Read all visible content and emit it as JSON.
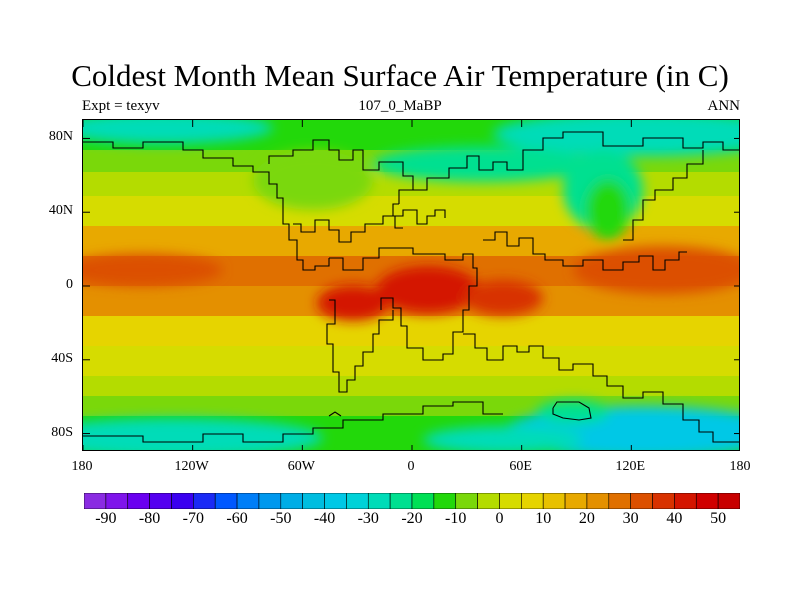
{
  "title": "Coldest Month Mean Surface Air Temperature (in C)",
  "subtitle_left": "Expt = texyv",
  "subtitle_center": "107_0_MaBP",
  "subtitle_right": "ANN",
  "map": {
    "lon_range": [
      -180,
      180
    ],
    "lat_range": [
      -90,
      90
    ],
    "lat_ticks": [
      {
        "value": 80,
        "label": "80N"
      },
      {
        "value": 40,
        "label": "40N"
      },
      {
        "value": 0,
        "label": "0"
      },
      {
        "value": -40,
        "label": "40S"
      },
      {
        "value": -80,
        "label": "80S"
      }
    ],
    "lon_ticks": [
      {
        "value": -180,
        "label": "180"
      },
      {
        "value": -120,
        "label": "120W"
      },
      {
        "value": -60,
        "label": "60W"
      },
      {
        "value": 0,
        "label": "0"
      },
      {
        "value": 60,
        "label": "60E"
      },
      {
        "value": 120,
        "label": "120E"
      },
      {
        "value": 180,
        "label": "180"
      }
    ]
  },
  "colorbar": {
    "min": -95,
    "max": 55,
    "step": 5,
    "colors": [
      "#8a2be2",
      "#7f14eb",
      "#6a00f0",
      "#5500f0",
      "#3a00f0",
      "#1a2af5",
      "#0058ff",
      "#007ef8",
      "#0098ee",
      "#00ade6",
      "#00bde0",
      "#00c8e6",
      "#00d2d8",
      "#00dcb8",
      "#00e090",
      "#00e055",
      "#22d80a",
      "#7ad80a",
      "#b4dc00",
      "#d6dc00",
      "#e6d400",
      "#e8c100",
      "#e8a900",
      "#e49000",
      "#e07000",
      "#dc5000",
      "#d83200",
      "#d41500",
      "#d00000",
      "#c80000"
    ],
    "labels": [
      {
        "value": -90,
        "label": "-90"
      },
      {
        "value": -80,
        "label": "-80"
      },
      {
        "value": -70,
        "label": "-70"
      },
      {
        "value": -60,
        "label": "-60"
      },
      {
        "value": -50,
        "label": "-50"
      },
      {
        "value": -40,
        "label": "-40"
      },
      {
        "value": -30,
        "label": "-30"
      },
      {
        "value": -20,
        "label": "-20"
      },
      {
        "value": -10,
        "label": "-10"
      },
      {
        "value": 0,
        "label": "0"
      },
      {
        "value": 10,
        "label": "10"
      },
      {
        "value": 20,
        "label": "20"
      },
      {
        "value": 30,
        "label": "30"
      },
      {
        "value": 40,
        "label": "40"
      },
      {
        "value": 50,
        "label": "50"
      }
    ]
  }
}
